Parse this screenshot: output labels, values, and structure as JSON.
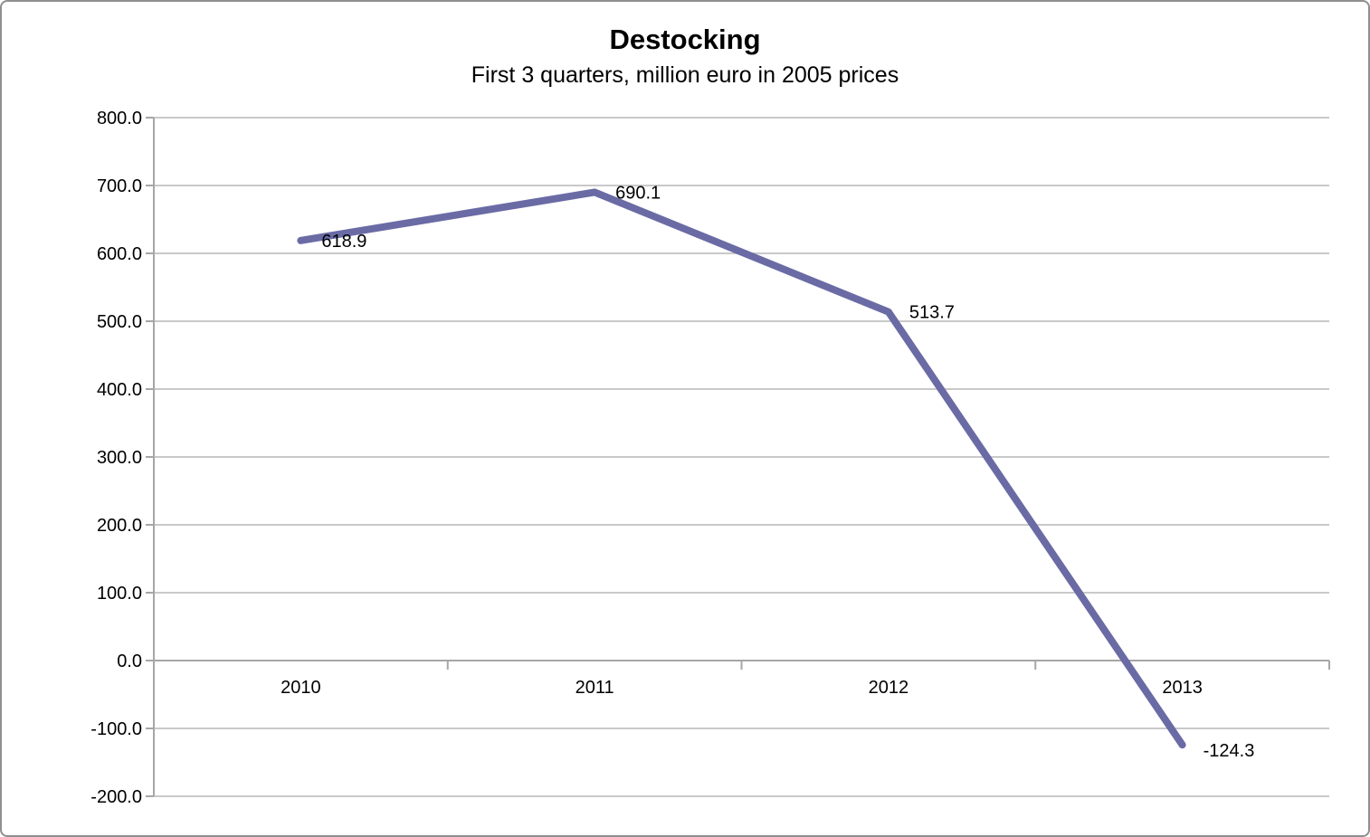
{
  "chart_data": {
    "type": "line",
    "title": "Destocking",
    "subtitle": "First 3 quarters, million euro in 2005 prices",
    "categories": [
      "2010",
      "2011",
      "2012",
      "2013"
    ],
    "series": [
      {
        "name": "Destocking",
        "values": [
          618.9,
          690.1,
          513.7,
          -124.3
        ]
      }
    ],
    "data_labels": [
      "618.9",
      "690.1",
      "513.7",
      "-124.3"
    ],
    "y_ticks": [
      {
        "value": 800,
        "label": "800.0"
      },
      {
        "value": 700,
        "label": "700.0"
      },
      {
        "value": 600,
        "label": "600.0"
      },
      {
        "value": 500,
        "label": "500.0"
      },
      {
        "value": 400,
        "label": "400.0"
      },
      {
        "value": 300,
        "label": "300.0"
      },
      {
        "value": 200,
        "label": "200.0"
      },
      {
        "value": 100,
        "label": "100.0"
      },
      {
        "value": 0,
        "label": "0.0"
      },
      {
        "value": -100,
        "label": "-100.0"
      },
      {
        "value": -200,
        "label": "-200.0"
      }
    ],
    "ylim": [
      -200,
      800
    ],
    "xlabel": "",
    "ylabel": "",
    "grid": true,
    "legend_position": "none",
    "colors": {
      "line": "#6A6BA5",
      "gridline": "#C9C9C9",
      "axis": "#A6A6A6",
      "text": "#000000",
      "background": "#FFFFFF",
      "frame_border": "#8F8F8F"
    }
  }
}
